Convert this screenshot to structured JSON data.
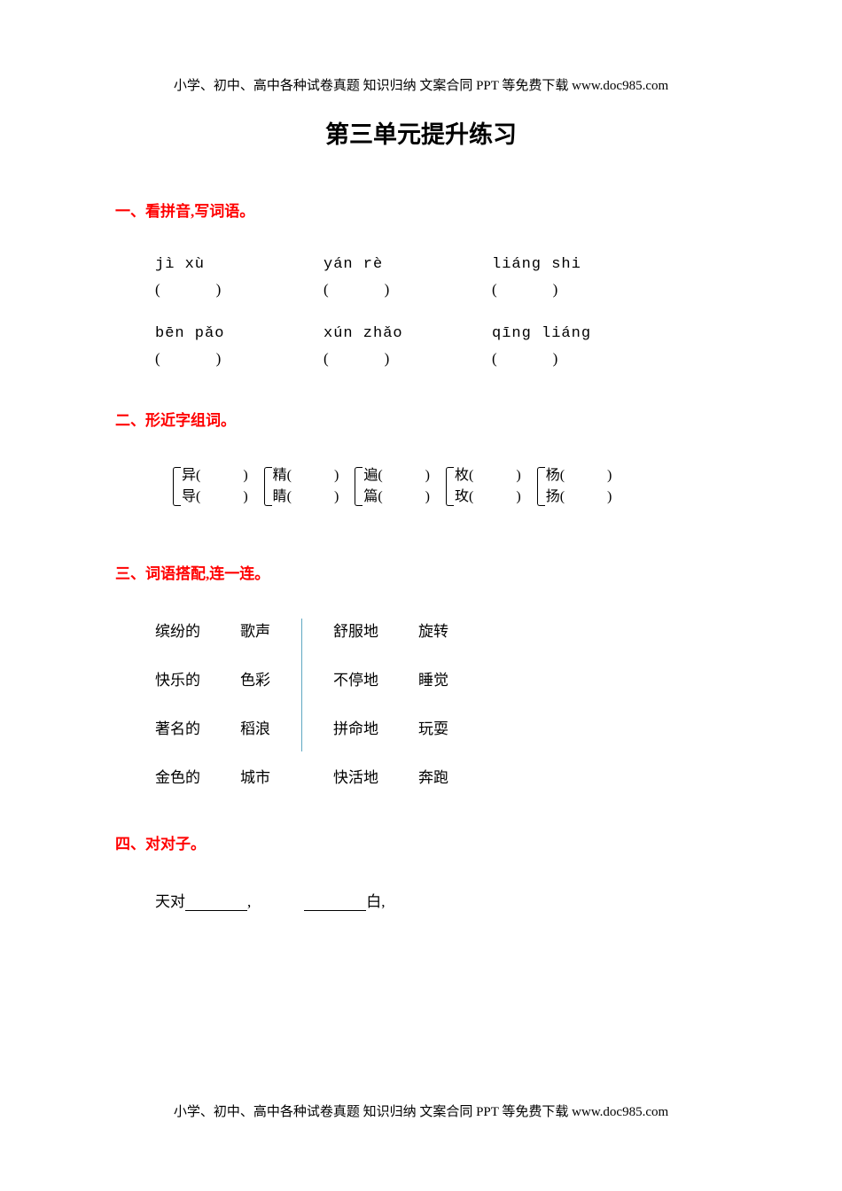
{
  "header": "小学、初中、高中各种试卷真题 知识归纳 文案合同 PPT 等免费下载   www.doc985.com",
  "footer": "小学、初中、高中各种试卷真题 知识归纳 文案合同 PPT 等免费下载   www.doc985.com",
  "title": "第三单元提升练习",
  "sections": {
    "s1": {
      "heading": "一、看拼音,写词语。",
      "items": [
        [
          "jì  xù",
          "yán  rè",
          "liáng  shi"
        ],
        [
          "bēn  pǎo",
          "xún  zhǎo",
          "qīng  liáng"
        ]
      ],
      "paren": "(　　　)"
    },
    "s2": {
      "heading": "二、形近字组词。",
      "pairs": [
        {
          "a": "异(　　　)",
          "b": "导(　　　)"
        },
        {
          "a": "精(　　　)",
          "b": "睛(　　　)"
        },
        {
          "a": "遍(　　　)",
          "b": "篇(　　　)"
        },
        {
          "a": "枚(　　　)",
          "b": "玫(　　　)"
        },
        {
          "a": "杨(　　　)",
          "b": "扬(　　　)"
        }
      ]
    },
    "s3": {
      "heading": "三、词语搭配,连一连。",
      "left": {
        "col1": [
          "缤纷的",
          "快乐的",
          "著名的",
          "金色的"
        ],
        "col2": [
          "歌声",
          "色彩",
          "稻浪",
          "城市"
        ]
      },
      "right": {
        "col1": [
          "舒服地",
          "不停地",
          "拼命地",
          "快活地"
        ],
        "col2": [
          "旋转",
          "睡觉",
          "玩耍",
          "奔跑"
        ]
      }
    },
    "s4": {
      "heading": "四、对对子。",
      "line1_pre": "天对",
      "line1_post": ",",
      "line2_post": "白,"
    }
  },
  "colors": {
    "heading": "#ff0000",
    "text": "#000000",
    "divider": "#5fa8c2",
    "background": "#ffffff"
  }
}
